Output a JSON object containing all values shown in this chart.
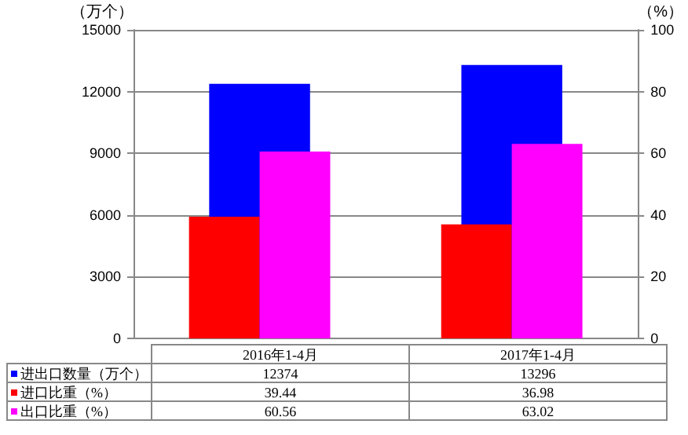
{
  "chart_data": {
    "type": "bar",
    "ylabel": "（万个）",
    "y2label": "（%）",
    "categories": [
      "2016年1-4月",
      "2017年1-4月"
    ],
    "series": [
      {
        "name": "进出口数量（万个）",
        "color": "#0000ff",
        "values": [
          12374,
          13296
        ]
      },
      {
        "name": "进口比重（%）",
        "color": "#ff0000",
        "values": [
          39.44,
          36.98
        ],
        "axis": "y2"
      },
      {
        "name": "出口比重（%）",
        "color": "#ff00ff",
        "values": [
          60.56,
          63.02
        ],
        "axis": "y2"
      }
    ],
    "ylim": [
      0,
      15000
    ],
    "yticks": [
      0,
      3000,
      6000,
      9000,
      12000,
      15000
    ],
    "y2lim": [
      0,
      100
    ],
    "y2ticks": [
      0,
      20,
      40,
      60,
      80,
      100
    ],
    "grid": "y",
    "legend": "bottom",
    "data_labels": true
  }
}
